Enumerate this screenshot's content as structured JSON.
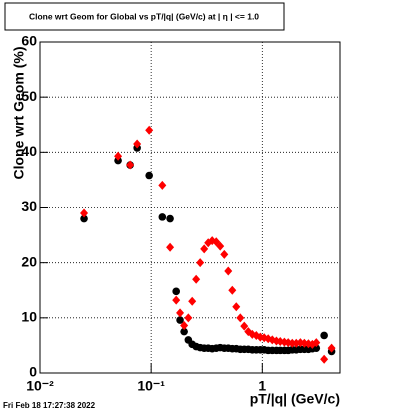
{
  "chart_data": {
    "type": "scatter",
    "title": "Clone wrt Geom for Global vs pT/|q| (GeV/c) at |  η | <= 1.0",
    "y_label": "Clone wrt Geom (%)",
    "x_label": "pT/|q| (GeV/c)",
    "timestamp": "Fri Feb 18 17:27:38 2022",
    "x_scale": "log",
    "grid": true,
    "xlim": [
      0.01,
      5
    ],
    "ylim": [
      0,
      60
    ],
    "xticks": [
      {
        "value": 0.01,
        "label": "10⁻²"
      },
      {
        "value": 0.1,
        "label": "10⁻¹"
      },
      1
    ],
    "yticks": [
      0,
      10,
      20,
      30,
      40,
      50,
      60
    ],
    "x": [
      0.0249,
      0.0504,
      0.0647,
      0.0748,
      0.096,
      0.126,
      0.148,
      0.168,
      0.182,
      0.198,
      0.216,
      0.234,
      0.254,
      0.276,
      0.3,
      0.326,
      0.354,
      0.385,
      0.418,
      0.455,
      0.494,
      0.537,
      0.583,
      0.634,
      0.688,
      0.748,
      0.813,
      0.883,
      0.959,
      1.04,
      1.13,
      1.23,
      1.34,
      1.45,
      1.58,
      1.71,
      1.86,
      2.02,
      2.2,
      2.39,
      2.6,
      2.82,
      3.06,
      3.6,
      4.2
    ],
    "series": [
      {
        "name": "Global (black)",
        "color": "#000000",
        "marker": "circle",
        "values": [
          28,
          38.5,
          37.7,
          40.8,
          35.8,
          28.3,
          28,
          14.8,
          9.6,
          7.5,
          6,
          5.2,
          4.8,
          4.6,
          4.5,
          4.5,
          4.4,
          4.5,
          4.6,
          4.5,
          4.5,
          4.4,
          4.4,
          4.3,
          4.3,
          4.3,
          4.2,
          4.2,
          4.2,
          4.2,
          4.1,
          4.1,
          4.1,
          4.1,
          4.1,
          4.1,
          4.2,
          4.2,
          4.3,
          4.3,
          4.3,
          4.4,
          4.5,
          6.8,
          3.9
        ]
      },
      {
        "name": "Global (red)",
        "color": "#ff0000",
        "marker": "diamond",
        "values": [
          29,
          39.3,
          37.7,
          41.5,
          44,
          34,
          22.8,
          13.2,
          10.9,
          8.6,
          10,
          13,
          17,
          20,
          22.5,
          23.6,
          24,
          23.8,
          23,
          21.5,
          18.5,
          15,
          12,
          10,
          8.5,
          7.5,
          7,
          6.8,
          6.5,
          6.4,
          6.2,
          6,
          5.8,
          5.7,
          5.6,
          5.5,
          5.4,
          5.4,
          5.5,
          5.4,
          5.3,
          5.2,
          5.5,
          2.5,
          4.5
        ]
      }
    ]
  }
}
